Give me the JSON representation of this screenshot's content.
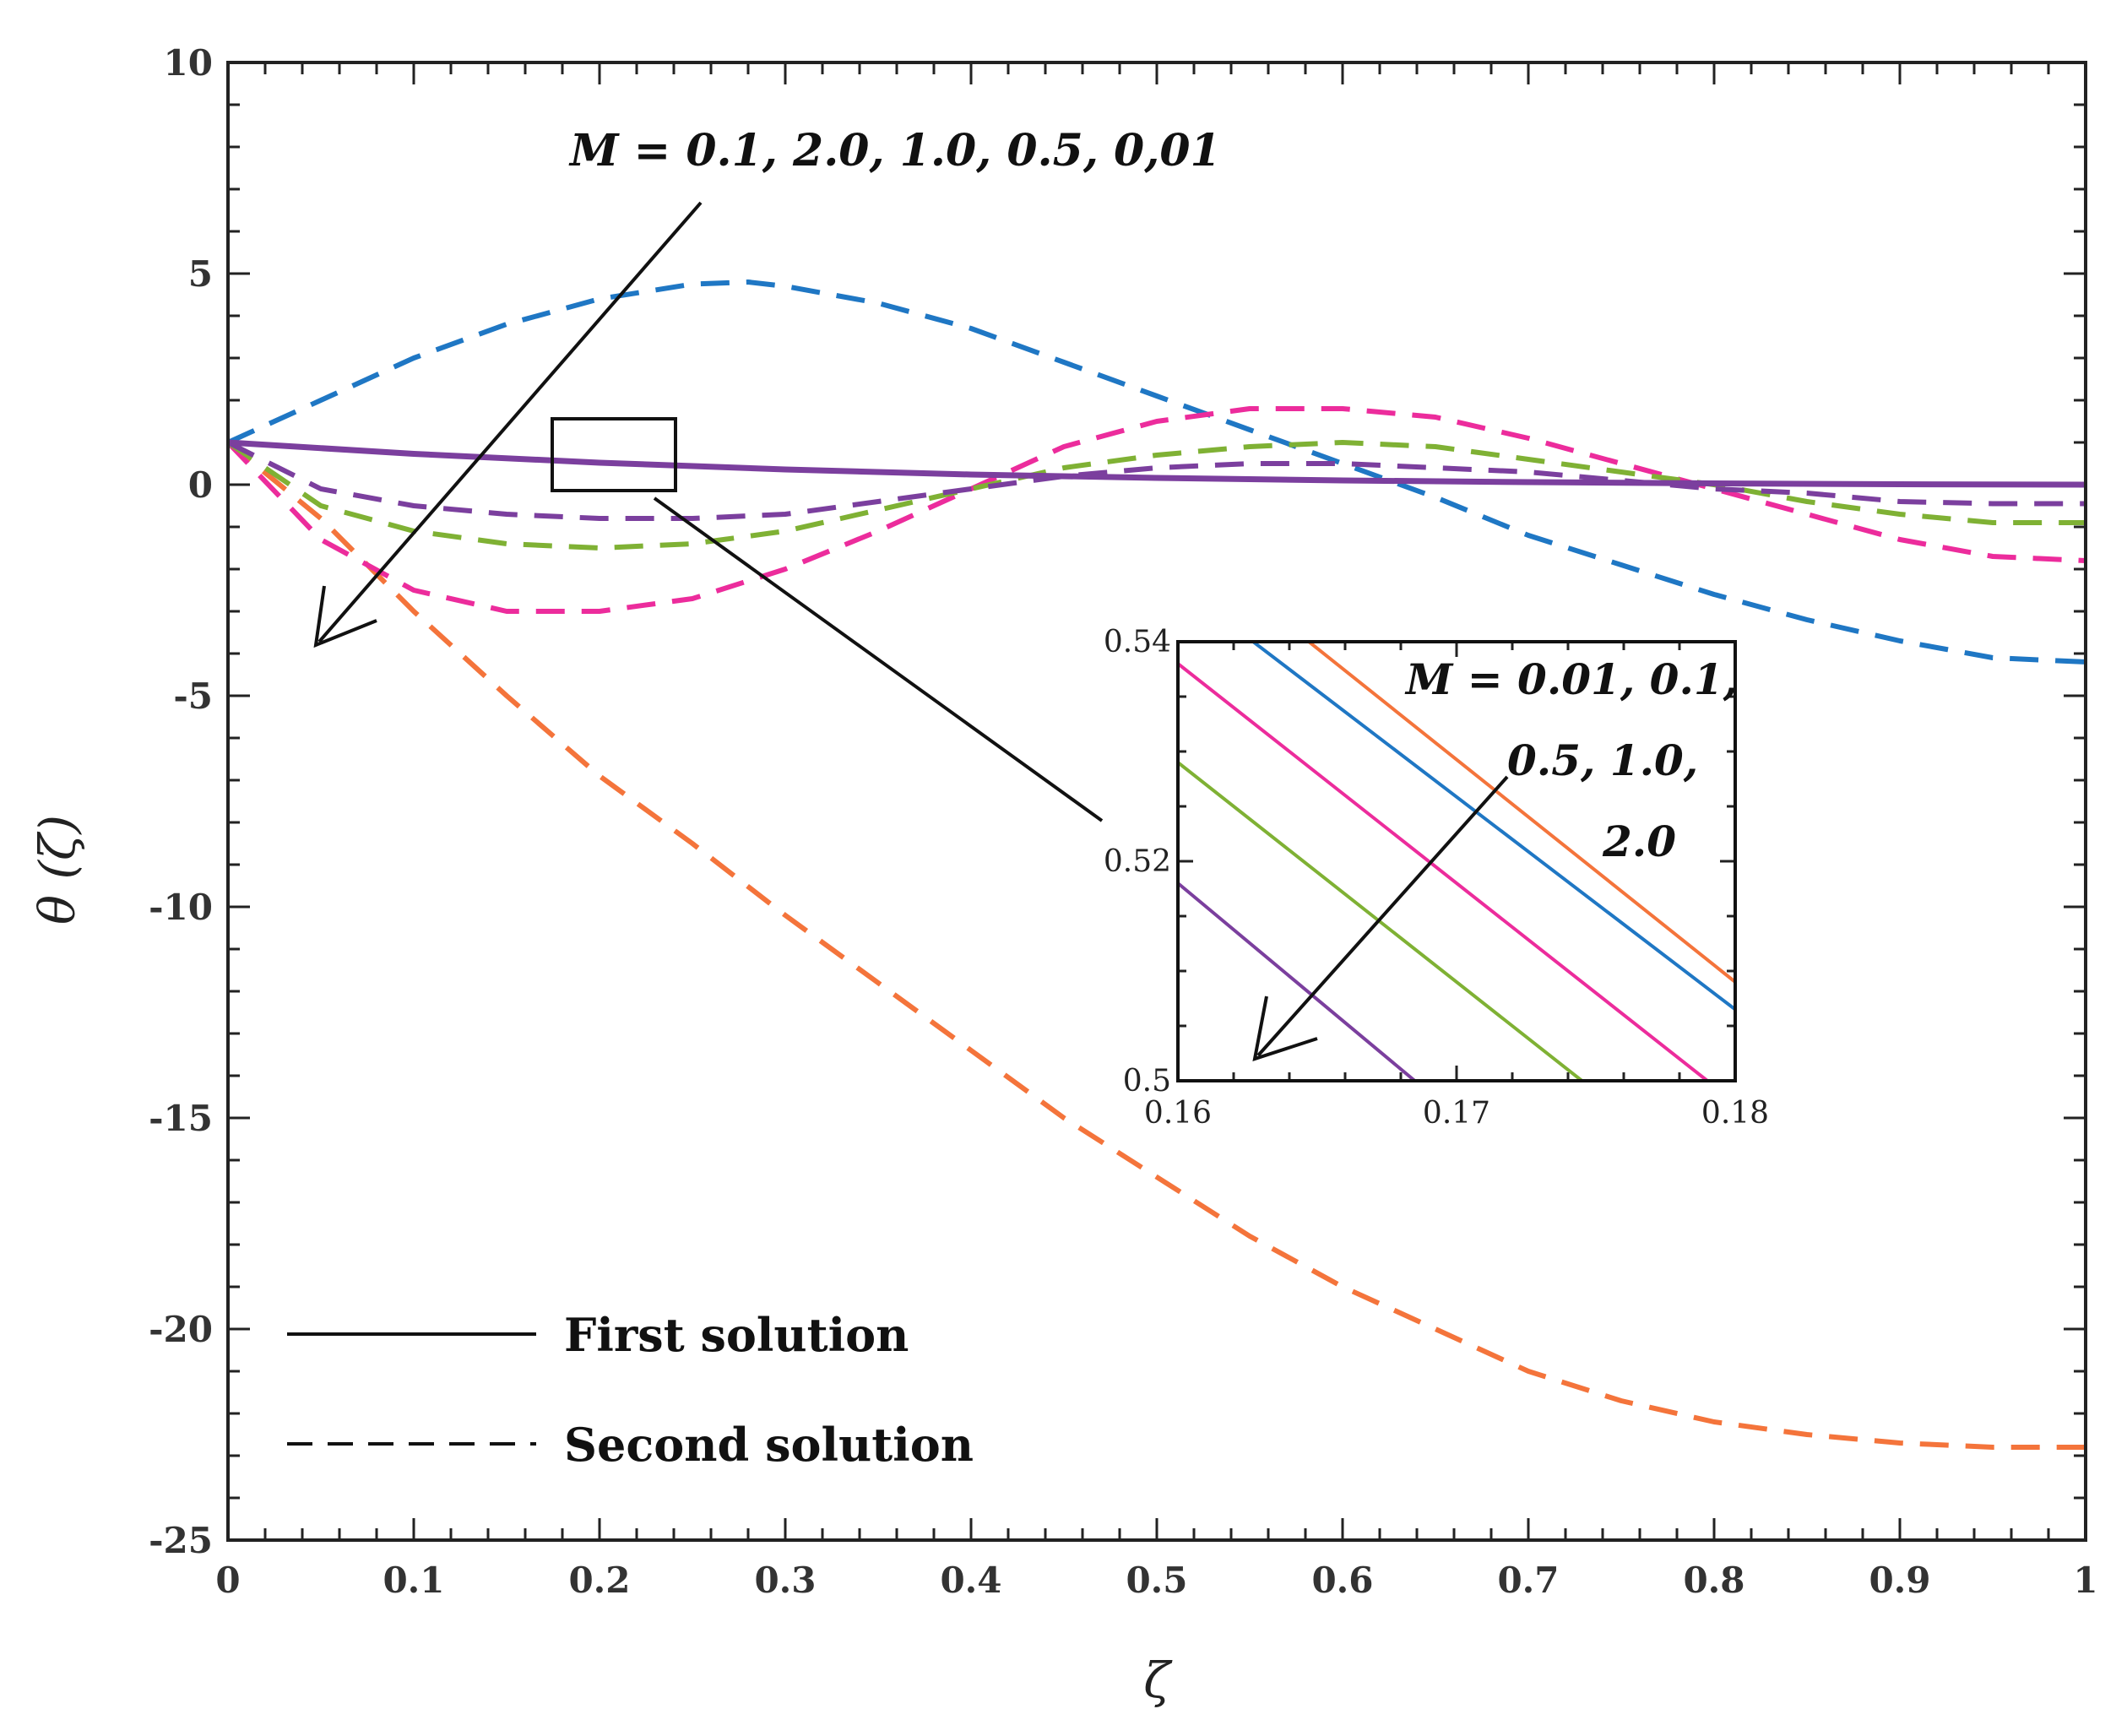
{
  "chart_data": {
    "type": "line",
    "xlabel": "ζ",
    "ylabel": "θ (ζ)",
    "xlim": [
      0,
      1
    ],
    "ylim": [
      -25,
      10
    ],
    "xticks": [
      "0",
      "0.1",
      "0.2",
      "0.3",
      "0.4",
      "0.5",
      "0.6",
      "0.7",
      "0.8",
      "0.9",
      "1"
    ],
    "yticks": [
      "10",
      "5",
      "0",
      "-5",
      "-10",
      "-15",
      "-20",
      "-25"
    ],
    "annotation": "M = 0.1, 2.0, 1.0, 0.5, 0,01",
    "legend": [
      {
        "label": "First solution",
        "style": "solid"
      },
      {
        "label": "Second solution",
        "style": "dashed"
      }
    ],
    "series": [
      {
        "name": "First solution (all M)",
        "style": "solid",
        "color": "#7B3F9E",
        "x": [
          0,
          0.1,
          0.2,
          0.3,
          0.4,
          0.5,
          0.6,
          0.7,
          0.8,
          0.9,
          1.0
        ],
        "y": [
          1.0,
          0.73,
          0.52,
          0.36,
          0.24,
          0.16,
          0.1,
          0.06,
          0.03,
          0.01,
          0.0
        ]
      },
      {
        "name": "Second solution M = 0.1",
        "style": "dashed",
        "color": "#1F77C4",
        "x": [
          0,
          0.05,
          0.1,
          0.15,
          0.2,
          0.25,
          0.28,
          0.3,
          0.35,
          0.4,
          0.45,
          0.5,
          0.55,
          0.6,
          0.65,
          0.7,
          0.75,
          0.8,
          0.85,
          0.9,
          0.95,
          1.0
        ],
        "y": [
          1.0,
          2.0,
          3.0,
          3.8,
          4.4,
          4.75,
          4.8,
          4.7,
          4.3,
          3.7,
          2.9,
          2.1,
          1.3,
          0.5,
          -0.3,
          -1.2,
          -1.9,
          -2.6,
          -3.2,
          -3.7,
          -4.1,
          -4.2
        ]
      },
      {
        "name": "Second solution M = 2.0",
        "style": "dashed",
        "color": "#F4743B",
        "x": [
          0,
          0.05,
          0.1,
          0.15,
          0.2,
          0.25,
          0.3,
          0.35,
          0.4,
          0.45,
          0.5,
          0.55,
          0.6,
          0.65,
          0.7,
          0.75,
          0.8,
          0.85,
          0.9,
          0.95,
          1.0
        ],
        "y": [
          1.0,
          -0.8,
          -3.0,
          -5.0,
          -6.9,
          -8.5,
          -10.2,
          -11.8,
          -13.4,
          -15.0,
          -16.4,
          -17.8,
          -19.0,
          -20.0,
          -21.0,
          -21.7,
          -22.2,
          -22.5,
          -22.7,
          -22.8,
          -22.8
        ]
      },
      {
        "name": "Second solution M = 1.0",
        "style": "dashed",
        "color": "#EC2C9C",
        "x": [
          0,
          0.05,
          0.1,
          0.15,
          0.2,
          0.25,
          0.3,
          0.35,
          0.4,
          0.45,
          0.5,
          0.55,
          0.6,
          0.65,
          0.7,
          0.75,
          0.8,
          0.85,
          0.9,
          0.95,
          1.0
        ],
        "y": [
          1.0,
          -1.3,
          -2.5,
          -3.0,
          -3.0,
          -2.7,
          -2.0,
          -1.1,
          -0.1,
          0.9,
          1.5,
          1.8,
          1.8,
          1.6,
          1.1,
          0.5,
          -0.1,
          -0.7,
          -1.3,
          -1.7,
          -1.8
        ]
      },
      {
        "name": "Second solution M = 0.5",
        "style": "dashed",
        "color": "#7FB134",
        "x": [
          0,
          0.05,
          0.1,
          0.15,
          0.2,
          0.25,
          0.3,
          0.35,
          0.4,
          0.45,
          0.5,
          0.55,
          0.6,
          0.65,
          0.7,
          0.75,
          0.8,
          0.85,
          0.9,
          0.95,
          1.0
        ],
        "y": [
          1.0,
          -0.5,
          -1.1,
          -1.4,
          -1.5,
          -1.4,
          -1.1,
          -0.6,
          -0.1,
          0.4,
          0.7,
          0.9,
          1.0,
          0.9,
          0.6,
          0.3,
          0.0,
          -0.4,
          -0.7,
          -0.9,
          -0.9
        ]
      },
      {
        "name": "Second solution M = 0.01",
        "style": "dashed",
        "color": "#7B3F9E",
        "x": [
          0,
          0.05,
          0.1,
          0.15,
          0.2,
          0.25,
          0.3,
          0.35,
          0.4,
          0.45,
          0.5,
          0.55,
          0.6,
          0.65,
          0.7,
          0.75,
          0.8,
          0.85,
          0.9,
          0.95,
          1.0
        ],
        "y": [
          1.0,
          -0.1,
          -0.5,
          -0.7,
          -0.8,
          -0.8,
          -0.7,
          -0.4,
          -0.1,
          0.2,
          0.4,
          0.5,
          0.5,
          0.4,
          0.3,
          0.1,
          -0.1,
          -0.2,
          -0.4,
          -0.45,
          -0.45
        ]
      }
    ],
    "zoom_box": {
      "xlim": [
        0.16,
        0.18
      ],
      "ylim": [
        0.5,
        0.54
      ]
    },
    "inset": {
      "xlim": [
        0.16,
        0.18
      ],
      "ylim": [
        0.5,
        0.54
      ],
      "xticks": [
        "0.16",
        "0.17",
        "0.18"
      ],
      "yticks": [
        "0.54",
        "0.52",
        "0.5"
      ],
      "annotation_lines": [
        "M = 0.01, 0.1,",
        "0.5, 1.0,",
        "2.0"
      ],
      "series": [
        {
          "name": "M = 2.0",
          "color": "#F4743B",
          "x": [
            0.1647,
            0.18
          ],
          "y": [
            0.54,
            0.509
          ]
        },
        {
          "name": "M = 1.0",
          "color": "#1F77C4",
          "x": [
            0.1627,
            0.18
          ],
          "y": [
            0.54,
            0.5065
          ]
        },
        {
          "name": "M = 0.5",
          "color": "#EC2C9C",
          "x": [
            0.16,
            0.179
          ],
          "y": [
            0.538,
            0.5
          ]
        },
        {
          "name": "M = 0.1",
          "color": "#7FB134",
          "x": [
            0.16,
            0.1745
          ],
          "y": [
            0.529,
            0.5
          ]
        },
        {
          "name": "M = 0.01",
          "color": "#7B3F9E",
          "x": [
            0.16,
            0.1685
          ],
          "y": [
            0.518,
            0.5
          ]
        }
      ]
    }
  }
}
